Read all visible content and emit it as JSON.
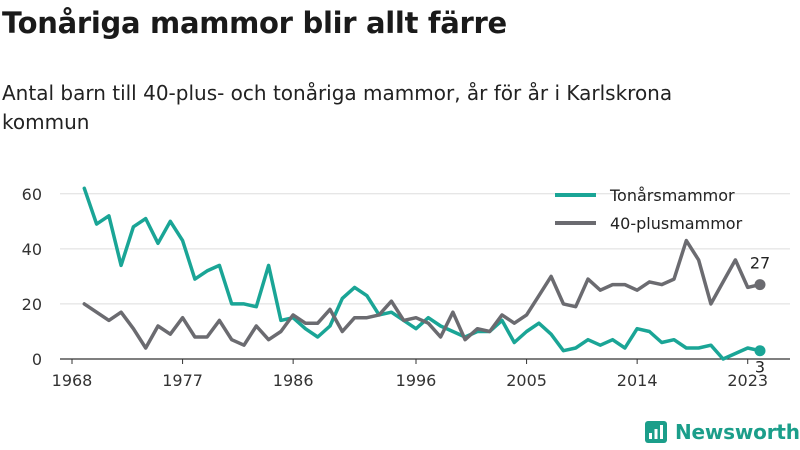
{
  "title": "Tonåriga mammor blir allt färre",
  "subtitle": "Antal barn till 40-plus- och tonåriga mammor, år för år i Karlskrona kommun",
  "brand": {
    "name": "Newsworthy",
    "icon": "newsworthy-logo-icon",
    "color": "#1b9e8a"
  },
  "chart_data": {
    "type": "line",
    "x_ticks": [
      1968,
      1977,
      1986,
      1996,
      2005,
      2014,
      2023
    ],
    "y_ticks": [
      0,
      20,
      40,
      60
    ],
    "xlim": [
      1968,
      2024
    ],
    "ylim": [
      0,
      65
    ],
    "grid": "horizontal",
    "legend_position": "top-right",
    "x": [
      1969,
      1970,
      1971,
      1972,
      1973,
      1974,
      1975,
      1976,
      1977,
      1978,
      1979,
      1980,
      1981,
      1982,
      1983,
      1984,
      1985,
      1986,
      1987,
      1988,
      1989,
      1990,
      1991,
      1992,
      1993,
      1994,
      1995,
      1996,
      1997,
      1998,
      1999,
      2000,
      2001,
      2002,
      2003,
      2004,
      2005,
      2006,
      2007,
      2008,
      2009,
      2010,
      2011,
      2012,
      2013,
      2014,
      2015,
      2016,
      2017,
      2018,
      2019,
      2020,
      2021,
      2022,
      2023,
      2024
    ],
    "series": [
      {
        "name": "Tonårsmammor",
        "color": "#1aa596",
        "end_label": "3",
        "values": [
          62,
          49,
          52,
          34,
          48,
          51,
          42,
          50,
          43,
          29,
          32,
          34,
          20,
          20,
          19,
          34,
          14,
          15,
          11,
          8,
          12,
          22,
          26,
          23,
          16,
          17,
          14,
          11,
          15,
          12,
          10,
          8,
          10,
          10,
          14,
          6,
          10,
          13,
          9,
          3,
          4,
          7,
          5,
          7,
          4,
          11,
          10,
          6,
          7,
          4,
          4,
          5,
          0,
          2,
          4,
          3
        ]
      },
      {
        "name": "40-plusmammor",
        "color": "#6b6b70",
        "end_label": "27",
        "values": [
          20,
          17,
          14,
          17,
          11,
          4,
          12,
          9,
          15,
          8,
          8,
          14,
          7,
          5,
          12,
          7,
          10,
          16,
          13,
          13,
          18,
          10,
          15,
          15,
          16,
          21,
          14,
          15,
          13,
          8,
          17,
          7,
          11,
          10,
          16,
          13,
          16,
          23,
          30,
          20,
          19,
          29,
          25,
          27,
          27,
          25,
          28,
          27,
          29,
          43,
          36,
          20,
          28,
          36,
          26,
          27
        ]
      }
    ]
  }
}
